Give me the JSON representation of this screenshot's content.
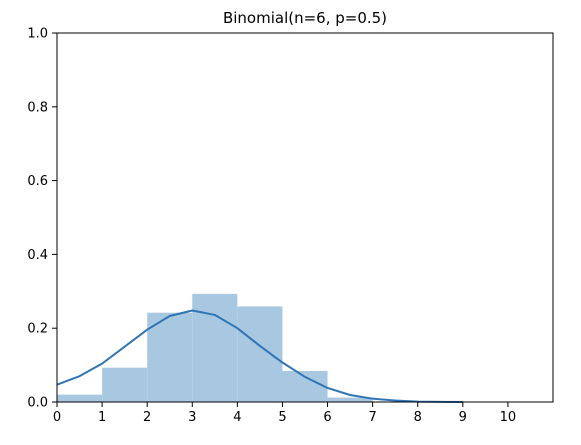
{
  "chart_data": {
    "type": "bar",
    "title": "Binomial(n=6, p=0.5)",
    "xlabel": "",
    "ylabel": "",
    "xlim": [
      0,
      11
    ],
    "ylim": [
      0,
      1.0
    ],
    "x_ticks": [
      0,
      1,
      2,
      3,
      4,
      5,
      6,
      7,
      8,
      9,
      10
    ],
    "y_ticks": [
      0.0,
      0.2,
      0.4,
      0.6,
      0.8,
      1.0
    ],
    "y_tick_labels": [
      "0.0",
      "0.2",
      "0.4",
      "0.6",
      "0.8",
      "1.0"
    ],
    "grid": false,
    "bars": [
      {
        "x0": 0,
        "x1": 1,
        "value": 0.02
      },
      {
        "x0": 1,
        "x1": 2,
        "value": 0.093
      },
      {
        "x0": 2,
        "x1": 3,
        "value": 0.242
      },
      {
        "x0": 3,
        "x1": 4,
        "value": 0.293
      },
      {
        "x0": 4,
        "x1": 5,
        "value": 0.259
      },
      {
        "x0": 5,
        "x1": 6,
        "value": 0.084
      },
      {
        "x0": 6,
        "x1": 7,
        "value": 0.012
      }
    ],
    "curve": {
      "x": [
        0,
        0.5,
        1,
        1.5,
        2,
        2.5,
        3,
        3.5,
        4,
        4.5,
        5,
        5.5,
        6,
        6.5,
        7,
        7.5,
        8,
        8.5,
        9
      ],
      "y": [
        0.047,
        0.07,
        0.104,
        0.15,
        0.196,
        0.233,
        0.248,
        0.236,
        0.2,
        0.152,
        0.107,
        0.068,
        0.038,
        0.019,
        0.009,
        0.004,
        0.001,
        0.0003,
        0.0
      ]
    },
    "colors": {
      "bar_fill": "#a8c8e1",
      "curve": "#2f75b3",
      "axis": "#000000"
    }
  }
}
